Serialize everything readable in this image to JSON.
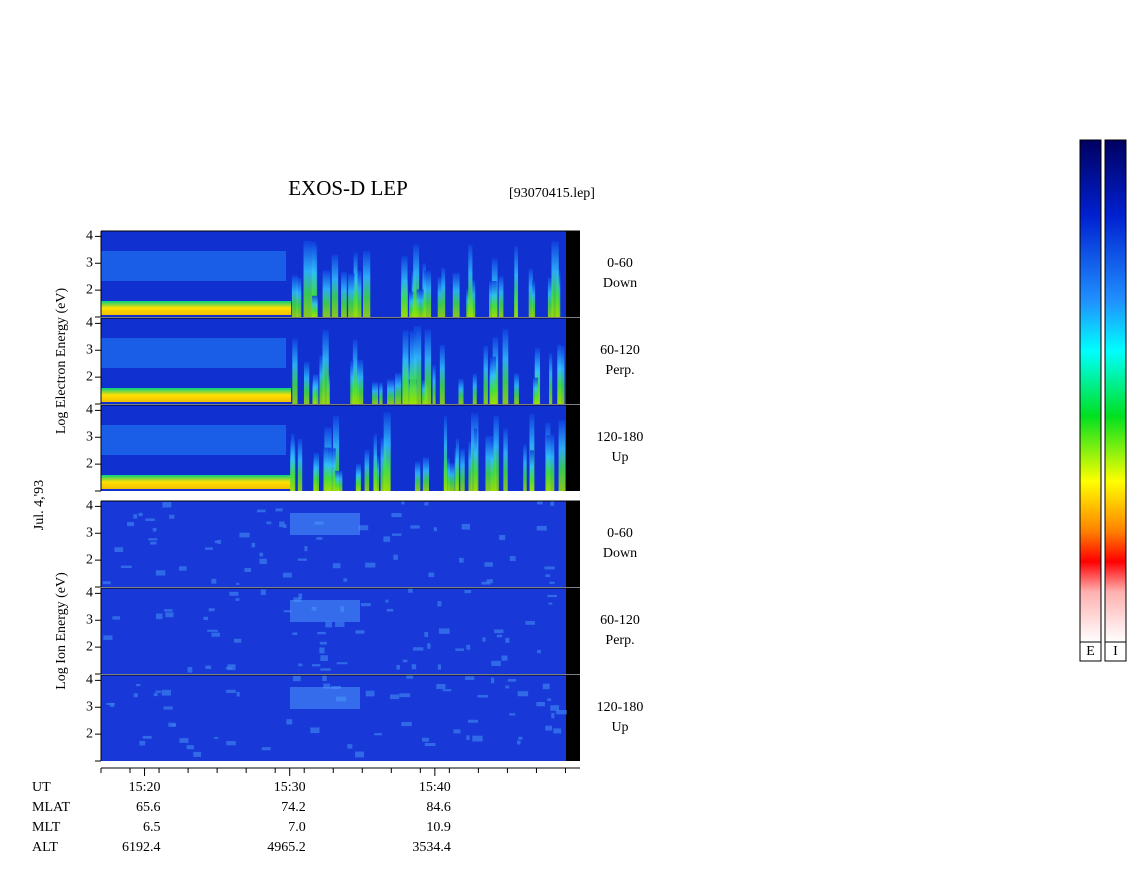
{
  "chart_data": {
    "type": "spectrogram",
    "title": "EXOS-D LEP",
    "file": "[93070415.lep]",
    "date": "Jul. 4,'93",
    "groups": [
      {
        "ylabel": "Log Electron Energy (eV)",
        "panels": [
          {
            "angle": "0-60",
            "direction": "Down"
          },
          {
            "angle": "60-120",
            "direction": "Perp."
          },
          {
            "angle": "120-180",
            "direction": "Up"
          }
        ]
      },
      {
        "ylabel": "Log Ion Energy (eV)",
        "panels": [
          {
            "angle": "0-60",
            "direction": "Down"
          },
          {
            "angle": "60-120",
            "direction": "Perp."
          },
          {
            "angle": "120-180",
            "direction": "Up"
          }
        ]
      }
    ],
    "ylim": [
      1,
      4.2
    ],
    "yticks": [
      2,
      3,
      4
    ],
    "xlim": [
      917,
      950
    ],
    "xticks": [
      {
        "value": 920,
        "label": "15:20"
      },
      {
        "value": 930,
        "label": "15:30"
      },
      {
        "value": 940,
        "label": "15:40"
      }
    ],
    "xlabel": "UT",
    "orbit": [
      {
        "name": "MLAT",
        "values": [
          "65.6",
          "74.2",
          "84.6"
        ]
      },
      {
        "name": "MLT",
        "values": [
          "6.5",
          "7.0",
          "10.9"
        ]
      },
      {
        "name": "ALT",
        "values": [
          "6192.4",
          "4965.2",
          "3534.4"
        ]
      }
    ],
    "colorbar_labels": [
      "E",
      "I"
    ]
  }
}
